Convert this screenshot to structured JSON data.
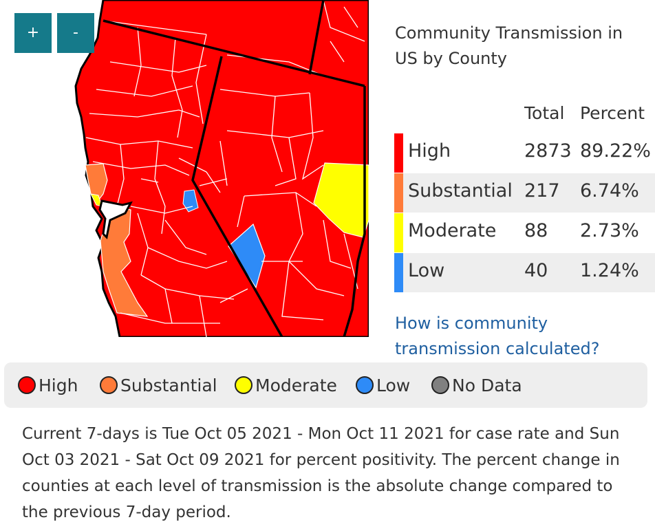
{
  "zoom": {
    "in_label": "+",
    "out_label": "-"
  },
  "panel": {
    "title": "Community Transmission in US by County",
    "headers": {
      "total": "Total",
      "percent": "Percent"
    },
    "rows": [
      {
        "level": "High",
        "total": "2873",
        "percent": "89.22%",
        "color": "#ff0000"
      },
      {
        "level": "Substantial",
        "total": "217",
        "percent": "6.74%",
        "color": "#ff7b39"
      },
      {
        "level": "Moderate",
        "total": "88",
        "percent": "2.73%",
        "color": "#ffff00"
      },
      {
        "level": "Low",
        "total": "40",
        "percent": "1.24%",
        "color": "#2e8bf7"
      }
    ],
    "link": "How is community transmission calculated?"
  },
  "legend": {
    "items": [
      {
        "label": "High",
        "color": "#ff0000"
      },
      {
        "label": "Substantial",
        "color": "#ff7b39"
      },
      {
        "label": "Moderate",
        "color": "#ffff00"
      },
      {
        "label": "Low",
        "color": "#2e8bf7"
      },
      {
        "label": "No Data",
        "color": "#808080"
      }
    ]
  },
  "note": "Current 7-days is Tue Oct 05 2021 - Mon Oct 11 2021 for case rate and Sun Oct 03 2021 - Sat Oct 09 2021 for percent positivity. The percent change in counties at each level of transmission is the absolute change compared to the previous 7-day period."
}
